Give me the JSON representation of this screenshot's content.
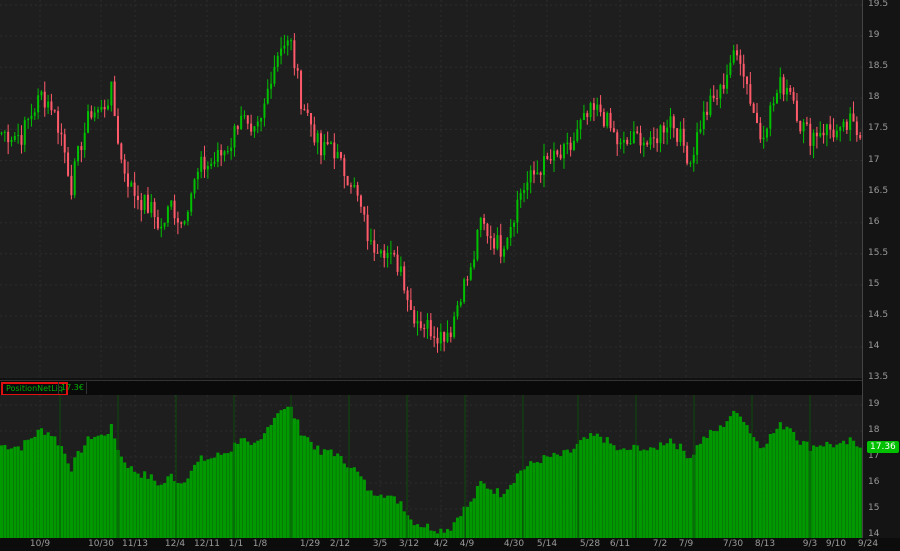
{
  "study": {
    "name": "PositionNetLiq",
    "value": "17.36",
    "value_truncated": "17.3€",
    "last_badge": "17.36"
  },
  "colors": {
    "up": "#00c000",
    "down": "#ff5a6a",
    "histogram": "#009a00",
    "background": "#1e1e1e"
  },
  "chart_data": [
    {
      "type": "candlestick",
      "ylim": [
        14,
        19.5
      ],
      "yticks": [
        "19.5",
        "19",
        "18.5",
        "18",
        "17.5",
        "17",
        "16.5",
        "16",
        "15.5",
        "15",
        "14.5",
        "14",
        "13.5"
      ],
      "closes": [
        17.45,
        17.42,
        17.4,
        17.75,
        18.05,
        17.9,
        17.4,
        16.6,
        17.3,
        17.8,
        17.8,
        18.1,
        17.0,
        16.55,
        16.35,
        16.2,
        15.9,
        16.3,
        16.0,
        16.5,
        16.9,
        16.95,
        17.1,
        17.3,
        17.8,
        17.3,
        17.6,
        18.4,
        18.9,
        18.85,
        18.0,
        17.6,
        17.1,
        17.3,
        16.9,
        16.7,
        16.2,
        15.6,
        15.7,
        15.4,
        15.3,
        14.6,
        14.4,
        14.3,
        14.2,
        14.3,
        14.9,
        15.2,
        16.0,
        15.8,
        15.6,
        16.0,
        16.5,
        16.7,
        16.9,
        17.0,
        17.05,
        17.2,
        17.55,
        17.75,
        17.8,
        17.5,
        17.2,
        17.3,
        17.4,
        17.2,
        17.5,
        17.7,
        17.35,
        17.0,
        17.6,
        17.9,
        18.1,
        18.6,
        18.7,
        18.0,
        17.4,
        17.8,
        18.2,
        18.2,
        17.6,
        17.4,
        17.5,
        17.5,
        17.4,
        17.6,
        17.36
      ]
    },
    {
      "type": "bar",
      "series_name": "PositionNetLiq",
      "ylim": [
        14,
        19.4
      ],
      "yticks": [
        "19",
        "18",
        "17",
        "16",
        "15",
        "14"
      ]
    }
  ],
  "xaxis": {
    "labels": [
      "10/9",
      "10/30",
      "11/13",
      "12/4",
      "12/11",
      "1/1",
      "1/8",
      "1/29",
      "2/12",
      "3/5",
      "3/12",
      "4/2",
      "4/9",
      "4/30",
      "5/14",
      "5/28",
      "6/11",
      "7/2",
      "7/9",
      "7/30",
      "8/13",
      "9/3",
      "9/10",
      "9/24"
    ]
  }
}
